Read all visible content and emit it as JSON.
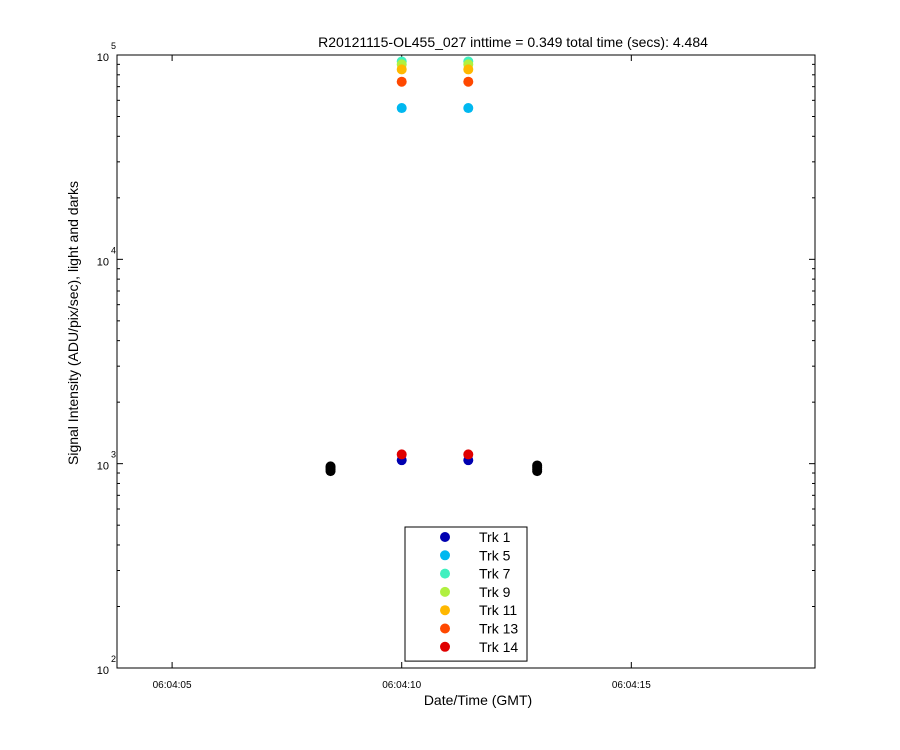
{
  "chart_data": {
    "type": "scatter",
    "title": "R20121115-OL455_027 inttime = 0.349 total time (secs): 4.484",
    "xlabel": "Date/Time (GMT)",
    "ylabel": "Signal Intensity (ADU/pix/sec), light and darks",
    "yscale": "log",
    "ylim": [
      100,
      100000
    ],
    "xlim_seconds": [
      3.8,
      19.0
    ],
    "x_ticks": [
      {
        "t": 5,
        "label": "06:04:05"
      },
      {
        "t": 10,
        "label": "06:04:10"
      },
      {
        "t": 15,
        "label": "06:04:15"
      }
    ],
    "y_ticks": [
      {
        "value": 100,
        "base": "10",
        "exp": "2"
      },
      {
        "value": 1000,
        "base": "10",
        "exp": "3"
      },
      {
        "value": 10000,
        "base": "10",
        "exp": "4"
      },
      {
        "value": 100000,
        "base": "10",
        "exp": "5"
      }
    ],
    "grid": false,
    "legend_position": "bottom-center",
    "series": [
      {
        "name": "Trk 1",
        "color": "#0000b0",
        "x": [
          10.0,
          11.45
        ],
        "y": [
          1040,
          1040
        ]
      },
      {
        "name": "Trk 5",
        "color": "#00b8f0",
        "x": [
          10.0,
          11.45
        ],
        "y": [
          55000,
          55000
        ]
      },
      {
        "name": "Trk 7",
        "color": "#40f0c0",
        "x": [
          10.0,
          11.45
        ],
        "y": [
          93000,
          93000
        ]
      },
      {
        "name": "Trk 9",
        "color": "#b0f040",
        "x": [
          10.0,
          11.45
        ],
        "y": [
          90000,
          90000
        ]
      },
      {
        "name": "Trk 11",
        "color": "#ffb800",
        "x": [
          10.0,
          11.45
        ],
        "y": [
          85000,
          85000
        ]
      },
      {
        "name": "Trk 13",
        "color": "#ff4800",
        "x": [
          10.0,
          11.45
        ],
        "y": [
          74000,
          74000
        ]
      },
      {
        "name": "Trk 14",
        "color": "#e00000",
        "x": [
          10.0,
          11.45
        ],
        "y": [
          1110,
          1110
        ]
      }
    ],
    "dark_points": {
      "color": "#000000",
      "x": [
        8.45,
        8.45,
        8.45,
        8.45,
        12.95,
        12.95,
        12.95,
        12.95
      ],
      "y": [
        920,
        940,
        955,
        970,
        920,
        940,
        960,
        980
      ]
    }
  }
}
